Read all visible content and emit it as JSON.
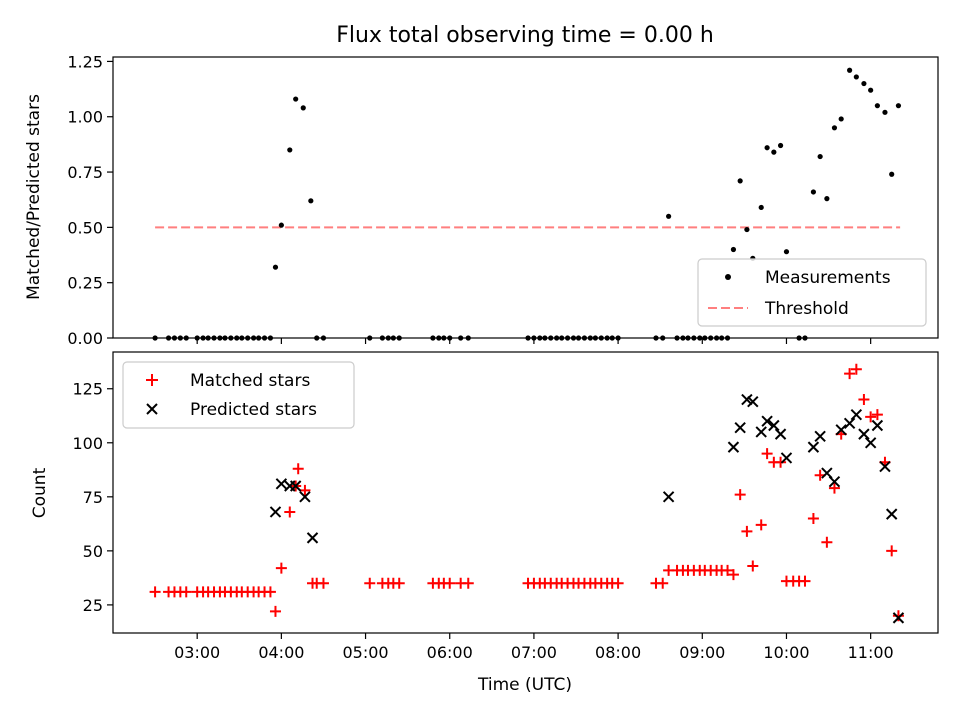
{
  "chart_data": [
    {
      "type": "scatter",
      "title": "Flux total observing time = 0.00 h",
      "xlabel": "",
      "ylabel": "Matched/Predicted stars",
      "x_unit": "time of day (UTC, decimal hours)",
      "xlim": [
        2.0,
        11.8
      ],
      "ylim": [
        0,
        1.27
      ],
      "yticks": [
        0.0,
        0.25,
        0.5,
        0.75,
        1.0,
        1.25
      ],
      "ytick_labels": [
        "0.00",
        "0.25",
        "0.50",
        "0.75",
        "1.00",
        "1.25"
      ],
      "legend_position": "lower-right",
      "series": [
        {
          "name": "Measurements",
          "marker": "dot",
          "color": "#000000",
          "points": [
            [
              2.5,
              0
            ],
            [
              2.66,
              0
            ],
            [
              2.73,
              0
            ],
            [
              2.8,
              0
            ],
            [
              2.87,
              0
            ],
            [
              3.0,
              0
            ],
            [
              3.07,
              0
            ],
            [
              3.13,
              0
            ],
            [
              3.2,
              0
            ],
            [
              3.27,
              0
            ],
            [
              3.33,
              0
            ],
            [
              3.4,
              0
            ],
            [
              3.47,
              0
            ],
            [
              3.53,
              0
            ],
            [
              3.6,
              0
            ],
            [
              3.67,
              0
            ],
            [
              3.73,
              0
            ],
            [
              3.8,
              0
            ],
            [
              3.87,
              0
            ],
            [
              3.93,
              0.32
            ],
            [
              4.0,
              0.51
            ],
            [
              4.1,
              0.85
            ],
            [
              4.17,
              1.08
            ],
            [
              4.26,
              1.04
            ],
            [
              4.35,
              0.62
            ],
            [
              4.42,
              0
            ],
            [
              4.5,
              0
            ],
            [
              5.05,
              0
            ],
            [
              5.2,
              0
            ],
            [
              5.27,
              0
            ],
            [
              5.33,
              0
            ],
            [
              5.4,
              0
            ],
            [
              5.8,
              0
            ],
            [
              5.87,
              0
            ],
            [
              5.93,
              0
            ],
            [
              6.0,
              0
            ],
            [
              6.13,
              0
            ],
            [
              6.22,
              0
            ],
            [
              6.93,
              0
            ],
            [
              7.0,
              0
            ],
            [
              7.07,
              0
            ],
            [
              7.13,
              0
            ],
            [
              7.2,
              0
            ],
            [
              7.27,
              0
            ],
            [
              7.33,
              0
            ],
            [
              7.4,
              0
            ],
            [
              7.47,
              0
            ],
            [
              7.53,
              0
            ],
            [
              7.6,
              0
            ],
            [
              7.67,
              0
            ],
            [
              7.73,
              0
            ],
            [
              7.8,
              0
            ],
            [
              7.87,
              0
            ],
            [
              7.93,
              0
            ],
            [
              8.0,
              0
            ],
            [
              8.45,
              0
            ],
            [
              8.53,
              0
            ],
            [
              8.6,
              0.55
            ],
            [
              8.7,
              0
            ],
            [
              8.77,
              0
            ],
            [
              8.83,
              0
            ],
            [
              8.9,
              0
            ],
            [
              8.97,
              0
            ],
            [
              9.03,
              0
            ],
            [
              9.1,
              0
            ],
            [
              9.17,
              0
            ],
            [
              9.23,
              0
            ],
            [
              9.3,
              0
            ],
            [
              9.37,
              0.4
            ],
            [
              9.45,
              0.71
            ],
            [
              9.53,
              0.49
            ],
            [
              9.6,
              0.36
            ],
            [
              9.7,
              0.59
            ],
            [
              9.77,
              0.86
            ],
            [
              9.85,
              0.84
            ],
            [
              9.93,
              0.87
            ],
            [
              10.0,
              0.39
            ],
            [
              10.15,
              0
            ],
            [
              10.22,
              0
            ],
            [
              10.32,
              0.66
            ],
            [
              10.4,
              0.82
            ],
            [
              10.48,
              0.63
            ],
            [
              10.57,
              0.95
            ],
            [
              10.65,
              0.99
            ],
            [
              10.75,
              1.21
            ],
            [
              10.83,
              1.18
            ],
            [
              10.92,
              1.15
            ],
            [
              11.0,
              1.12
            ],
            [
              11.08,
              1.05
            ],
            [
              11.17,
              1.02
            ],
            [
              11.25,
              0.74
            ],
            [
              11.33,
              1.05
            ]
          ]
        },
        {
          "name": "Threshold",
          "line": "dashed",
          "color": "#ff7f7f",
          "points": [
            [
              2.5,
              0.5
            ],
            [
              11.35,
              0.5
            ]
          ]
        }
      ]
    },
    {
      "type": "scatter",
      "title": "",
      "xlabel": "Time (UTC)",
      "ylabel": "Count",
      "x_unit": "time of day (UTC, decimal hours)",
      "xlim": [
        2.0,
        11.8
      ],
      "ylim": [
        12,
        142
      ],
      "yticks": [
        25,
        50,
        75,
        100,
        125
      ],
      "ytick_labels": [
        "25",
        "50",
        "75",
        "100",
        "125"
      ],
      "xticks": [
        3,
        4,
        5,
        6,
        7,
        8,
        9,
        10,
        11
      ],
      "xtick_labels": [
        "03:00",
        "04:00",
        "05:00",
        "06:00",
        "07:00",
        "08:00",
        "09:00",
        "10:00",
        "11:00"
      ],
      "legend_position": "upper-left",
      "series": [
        {
          "name": "Matched stars",
          "marker": "plus",
          "color": "#ff0000",
          "points": [
            [
              2.5,
              31
            ],
            [
              2.66,
              31
            ],
            [
              2.73,
              31
            ],
            [
              2.8,
              31
            ],
            [
              2.87,
              31
            ],
            [
              3.0,
              31
            ],
            [
              3.07,
              31
            ],
            [
              3.13,
              31
            ],
            [
              3.2,
              31
            ],
            [
              3.27,
              31
            ],
            [
              3.33,
              31
            ],
            [
              3.4,
              31
            ],
            [
              3.47,
              31
            ],
            [
              3.53,
              31
            ],
            [
              3.6,
              31
            ],
            [
              3.67,
              31
            ],
            [
              3.73,
              31
            ],
            [
              3.8,
              31
            ],
            [
              3.87,
              31
            ],
            [
              3.93,
              22
            ],
            [
              4.0,
              42
            ],
            [
              4.1,
              68
            ],
            [
              4.17,
              80
            ],
            [
              4.2,
              88
            ],
            [
              4.28,
              78
            ],
            [
              4.37,
              35
            ],
            [
              4.42,
              35
            ],
            [
              4.5,
              35
            ],
            [
              5.05,
              35
            ],
            [
              5.2,
              35
            ],
            [
              5.27,
              35
            ],
            [
              5.33,
              35
            ],
            [
              5.4,
              35
            ],
            [
              5.8,
              35
            ],
            [
              5.87,
              35
            ],
            [
              5.93,
              35
            ],
            [
              6.0,
              35
            ],
            [
              6.13,
              35
            ],
            [
              6.22,
              35
            ],
            [
              6.93,
              35
            ],
            [
              7.0,
              35
            ],
            [
              7.07,
              35
            ],
            [
              7.13,
              35
            ],
            [
              7.2,
              35
            ],
            [
              7.27,
              35
            ],
            [
              7.33,
              35
            ],
            [
              7.4,
              35
            ],
            [
              7.47,
              35
            ],
            [
              7.53,
              35
            ],
            [
              7.6,
              35
            ],
            [
              7.67,
              35
            ],
            [
              7.73,
              35
            ],
            [
              7.8,
              35
            ],
            [
              7.87,
              35
            ],
            [
              7.93,
              35
            ],
            [
              8.0,
              35
            ],
            [
              8.45,
              35
            ],
            [
              8.53,
              35
            ],
            [
              8.6,
              41
            ],
            [
              8.7,
              41
            ],
            [
              8.77,
              41
            ],
            [
              8.83,
              41
            ],
            [
              8.9,
              41
            ],
            [
              8.97,
              41
            ],
            [
              9.03,
              41
            ],
            [
              9.1,
              41
            ],
            [
              9.17,
              41
            ],
            [
              9.23,
              41
            ],
            [
              9.3,
              41
            ],
            [
              9.37,
              39
            ],
            [
              9.45,
              76
            ],
            [
              9.53,
              59
            ],
            [
              9.6,
              43
            ],
            [
              9.7,
              62
            ],
            [
              9.77,
              95
            ],
            [
              9.85,
              91
            ],
            [
              9.93,
              91
            ],
            [
              10.0,
              36
            ],
            [
              10.08,
              36
            ],
            [
              10.15,
              36
            ],
            [
              10.22,
              36
            ],
            [
              10.32,
              65
            ],
            [
              10.4,
              85
            ],
            [
              10.48,
              54
            ],
            [
              10.57,
              79
            ],
            [
              10.65,
              104
            ],
            [
              10.75,
              132
            ],
            [
              10.83,
              134
            ],
            [
              10.92,
              120
            ],
            [
              11.0,
              112
            ],
            [
              11.08,
              113
            ],
            [
              11.17,
              91
            ],
            [
              11.25,
              50
            ],
            [
              11.33,
              20
            ]
          ]
        },
        {
          "name": "Predicted stars",
          "marker": "x",
          "color": "#000000",
          "points": [
            [
              3.93,
              68
            ],
            [
              4.0,
              81
            ],
            [
              4.1,
              80
            ],
            [
              4.17,
              80
            ],
            [
              4.28,
              75
            ],
            [
              4.37,
              56
            ],
            [
              8.6,
              75
            ],
            [
              9.37,
              98
            ],
            [
              9.45,
              107
            ],
            [
              9.53,
              120
            ],
            [
              9.6,
              119
            ],
            [
              9.7,
              105
            ],
            [
              9.77,
              110
            ],
            [
              9.85,
              108
            ],
            [
              9.93,
              104
            ],
            [
              10.0,
              93
            ],
            [
              10.32,
              98
            ],
            [
              10.4,
              103
            ],
            [
              10.48,
              86
            ],
            [
              10.57,
              82
            ],
            [
              10.65,
              106
            ],
            [
              10.75,
              109
            ],
            [
              10.83,
              113
            ],
            [
              10.92,
              104
            ],
            [
              11.0,
              100
            ],
            [
              11.08,
              108
            ],
            [
              11.17,
              89
            ],
            [
              11.25,
              67
            ],
            [
              11.33,
              19
            ]
          ]
        }
      ]
    }
  ]
}
